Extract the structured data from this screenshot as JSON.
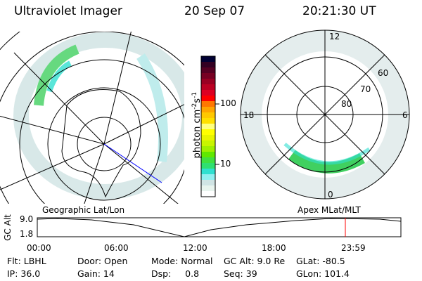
{
  "header": {
    "instrument": "Ultraviolet Imager",
    "date": "20 Sep 07",
    "time": "20:21:30 UT"
  },
  "colorbar": {
    "label": "photon cm",
    "exp1": "-2",
    "unit2": "s",
    "exp2": "-1",
    "ticks": [
      "100",
      "10"
    ],
    "colors": [
      "#000033",
      "#330022",
      "#550022",
      "#770022",
      "#990022",
      "#bb0022",
      "#dd0022",
      "#ff0000",
      "#ff7700",
      "#ffa500",
      "#ffc800",
      "#ffe000",
      "#ffff80",
      "#ffff00",
      "#e8f500",
      "#c8f500",
      "#a0f000",
      "#60e800",
      "#40e040",
      "#30e070",
      "#30e0d0",
      "#90f0f0",
      "#d0e4e4",
      "#e8f4ee",
      "#ffffff"
    ]
  },
  "polar_plot": {
    "mlt_labels": [
      "12",
      "18",
      "6",
      "0"
    ],
    "lat_labels": [
      "60",
      "70",
      "80"
    ]
  },
  "orbit_plot": {
    "left_label": "Geographic Lat/Lon",
    "right_label": "Apex MLat/MLT",
    "ylabel": "GC Alt",
    "yticks": [
      "9.0",
      "1.8"
    ],
    "xticks": [
      "00:00",
      "06:00",
      "12:00",
      "18:00",
      "23:59"
    ],
    "current_time_marker": "20:21",
    "marker_color": "#ff0000"
  },
  "info": {
    "row1": [
      "Flt: LBHL",
      "Door: Open",
      "Mode: Normal",
      "GC Alt: 9.0 Re",
      "GLat: -80.5"
    ],
    "row2": [
      "IP: 36.0",
      "Gain: 14",
      "Dsp:     0.8",
      "Seq: 39",
      "GLon: 101.4"
    ]
  }
}
